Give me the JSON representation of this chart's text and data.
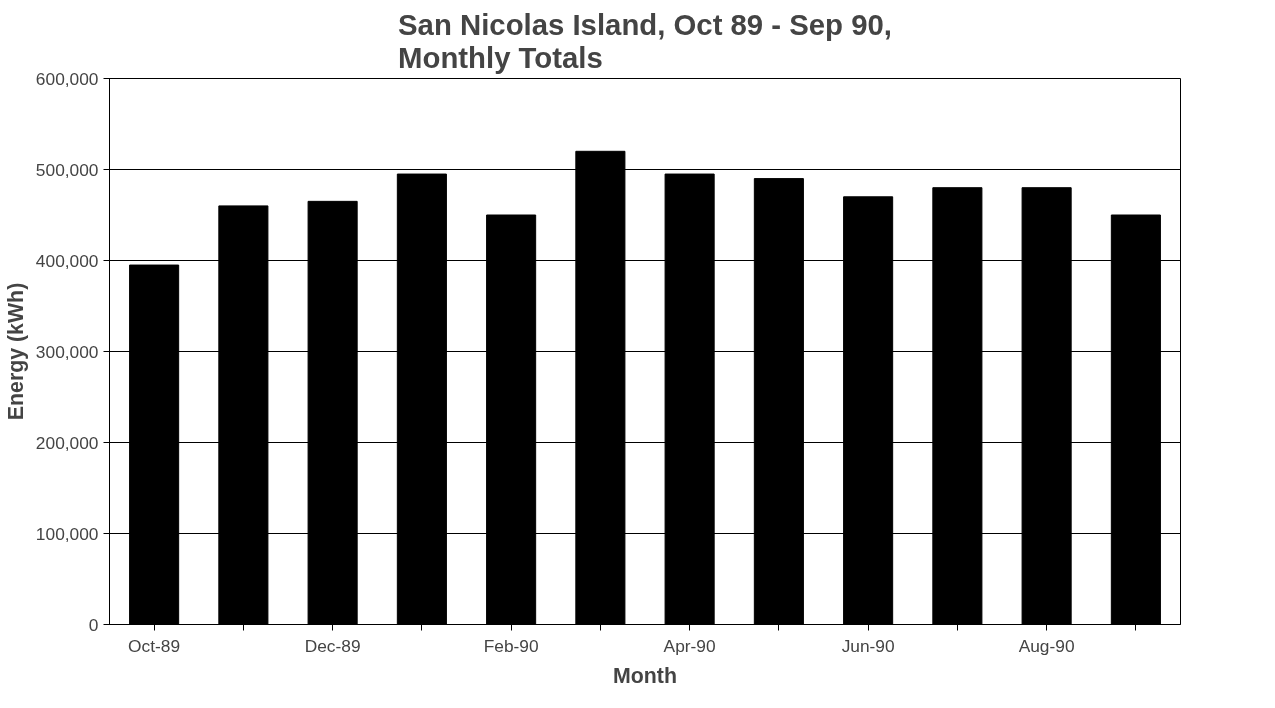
{
  "chart_data": {
    "type": "bar",
    "title": "San Nicolas Island, Oct 89 - Sep 90,\nMonthly Totals",
    "xlabel": "Month",
    "ylabel": "Energy (kWh)",
    "categories": [
      "Oct-89",
      null,
      "Dec-89",
      null,
      "Feb-90",
      null,
      "Apr-90",
      null,
      "Jun-90",
      null,
      "Aug-90",
      null
    ],
    "values": [
      395000,
      460000,
      465000,
      495000,
      450000,
      520000,
      495000,
      490000,
      470000,
      480000,
      480000,
      450000
    ],
    "color": "#000000",
    "ylim": [
      0,
      600000
    ],
    "yticks": [
      {
        "value": 0,
        "label": "0"
      },
      {
        "value": 100000,
        "label": "100,000"
      },
      {
        "value": 200000,
        "label": "200,000"
      },
      {
        "value": 300000,
        "label": "300,000"
      },
      {
        "value": 400000,
        "label": "400,000"
      },
      {
        "value": 500000,
        "label": "500,000"
      },
      {
        "value": 600000,
        "label": "600,000"
      }
    ],
    "grid": "y"
  }
}
